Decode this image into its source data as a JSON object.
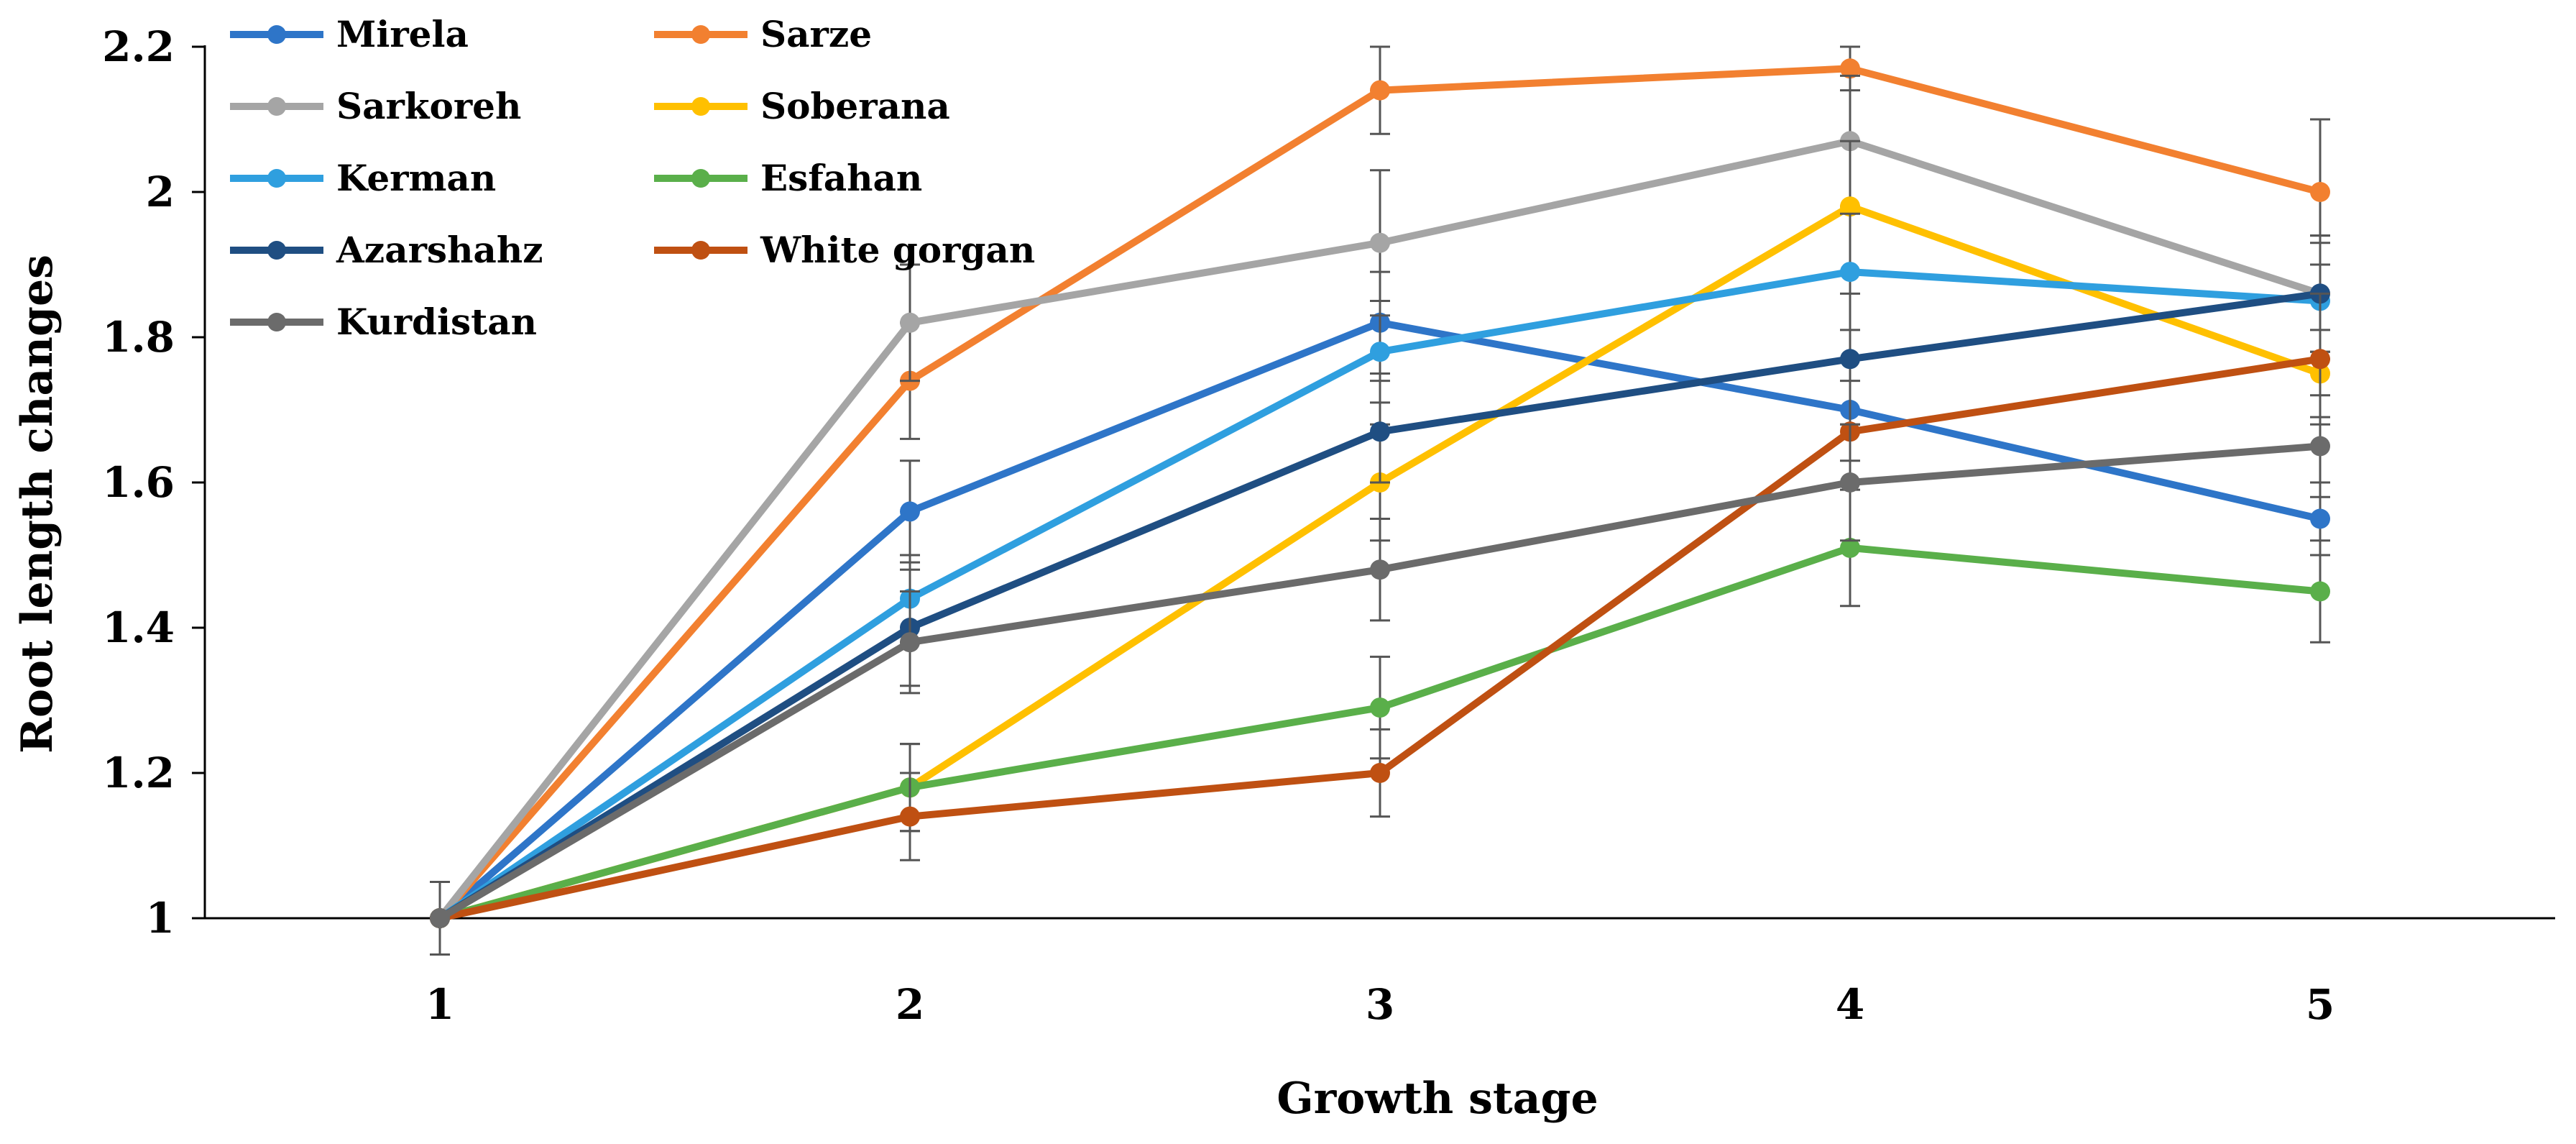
{
  "chart_data": {
    "type": "line",
    "title": "",
    "xlabel": "Growth stage",
    "ylabel": "Root length changes",
    "x": [
      1,
      2,
      3,
      4,
      5
    ],
    "categories": [
      "1",
      "2",
      "3",
      "4",
      "5"
    ],
    "ylim": [
      1,
      2.2
    ],
    "yticks": [
      1,
      1.2,
      1.4,
      1.6,
      1.8,
      2,
      2.2
    ],
    "ytick_labels": [
      "1",
      "1.2",
      "1.4",
      "1.6",
      "1.8",
      "2",
      "2.2"
    ],
    "grid": false,
    "legend_position": "top-left",
    "series": [
      {
        "name": "Mirela",
        "color": "#2E75C8",
        "values": [
          1.0,
          1.56,
          1.82,
          1.7,
          1.55
        ],
        "errors": [
          0.05,
          0.07,
          0.07,
          0.07,
          0.05
        ]
      },
      {
        "name": "Sarze",
        "color": "#F28030",
        "values": [
          1.0,
          1.74,
          2.14,
          2.17,
          2.0
        ],
        "errors": [
          0.05,
          0.08,
          0.06,
          0.03,
          0.1
        ]
      },
      {
        "name": "Sarkoreh",
        "color": "#A5A5A5",
        "values": [
          1.0,
          1.82,
          1.93,
          2.07,
          1.86
        ],
        "errors": [
          0.05,
          0.08,
          0.1,
          0.09,
          0.08
        ]
      },
      {
        "name": "Soberana",
        "color": "#FFC000",
        "values": [
          1.0,
          1.18,
          1.6,
          1.98,
          1.75
        ],
        "errors": [
          0.05,
          0.06,
          0.08,
          0.09,
          0.06
        ]
      },
      {
        "name": "Kerman",
        "color": "#2F9FDF",
        "values": [
          1.0,
          1.44,
          1.78,
          1.89,
          1.85
        ],
        "errors": [
          0.05,
          0.06,
          0.07,
          0.08,
          0.08
        ]
      },
      {
        "name": "Esfahan",
        "color": "#5AAF4A",
        "values": [
          1.0,
          1.18,
          1.29,
          1.51,
          1.45
        ],
        "errors": [
          0.05,
          0.06,
          0.07,
          0.08,
          0.07
        ]
      },
      {
        "name": "Azarshahz",
        "color": "#1F4E82",
        "values": [
          1.0,
          1.4,
          1.67,
          1.77,
          1.86
        ],
        "errors": [
          0.05,
          0.08,
          0.07,
          0.09,
          0.08
        ]
      },
      {
        "name": "White gorgan",
        "color": "#BF5012",
        "values": [
          1.0,
          1.14,
          1.2,
          1.67,
          1.77
        ],
        "errors": [
          0.05,
          0.06,
          0.06,
          0.07,
          0.09
        ]
      },
      {
        "name": "Kurdistan",
        "color": "#6B6B6B",
        "values": [
          1.0,
          1.38,
          1.48,
          1.6,
          1.65
        ],
        "errors": [
          0.05,
          0.07,
          0.07,
          0.08,
          0.07
        ]
      }
    ]
  }
}
